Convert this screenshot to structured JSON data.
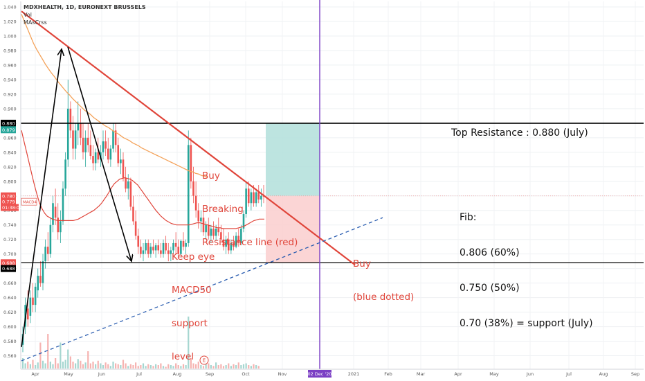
{
  "chart_data": {
    "type": "candlestick",
    "title": "MDXHEALTH, 1D, EURONEXT BRUSSELS",
    "indicators": [
      "Vol",
      "MAsCrss"
    ],
    "y_ticks": [
      "1.040",
      "1.020",
      "1.000",
      "0.980",
      "0.960",
      "0.940",
      "0.920",
      "0.900",
      "0.880",
      "0.860",
      "0.840",
      "0.820",
      "0.800",
      "0.780",
      "0.760",
      "0.740",
      "0.720",
      "0.700",
      "0.680",
      "0.660",
      "0.640",
      "0.620",
      "0.600",
      "0.580",
      "0.560"
    ],
    "x_ticks": [
      "Apr",
      "May",
      "Jun",
      "Jul",
      "Aug",
      "Sep",
      "Oct",
      "Nov",
      "02 Dec '20",
      "2021",
      "Feb",
      "Mar",
      "Apr",
      "May",
      "Jun",
      "Jul",
      "Aug",
      "Sep"
    ],
    "price_labels": [
      {
        "text": "0.880",
        "color": "#000000",
        "y": 0.88
      },
      {
        "text": "0.879",
        "color": "#26a69a",
        "y": 0.871
      },
      {
        "text": "0.780",
        "color": "#ef5350",
        "y": 0.78
      },
      {
        "text": "0.779",
        "color": "#ef5350",
        "y": 0.772
      },
      {
        "text": "01:38:02",
        "color": "#ef5350",
        "y": 0.764
      },
      {
        "text": "0.688",
        "color": "#ef5350",
        "y": 0.688
      },
      {
        "text": "0.688",
        "color": "#000000",
        "y": 0.68
      }
    ],
    "ma_tag": "MACD4",
    "candles": [
      [
        0.575,
        0.6,
        0.565,
        0.59
      ],
      [
        0.6,
        0.64,
        0.59,
        0.63
      ],
      [
        0.625,
        0.65,
        0.6,
        0.61
      ],
      [
        0.615,
        0.65,
        0.605,
        0.64
      ],
      [
        0.64,
        0.66,
        0.62,
        0.63
      ],
      [
        0.63,
        0.66,
        0.62,
        0.655
      ],
      [
        0.65,
        0.68,
        0.64,
        0.67
      ],
      [
        0.67,
        0.69,
        0.655,
        0.66
      ],
      [
        0.66,
        0.7,
        0.65,
        0.69
      ],
      [
        0.69,
        0.72,
        0.68,
        0.71
      ],
      [
        0.71,
        0.73,
        0.69,
        0.7
      ],
      [
        0.7,
        0.75,
        0.695,
        0.74
      ],
      [
        0.74,
        0.78,
        0.73,
        0.77
      ],
      [
        0.765,
        0.79,
        0.74,
        0.75
      ],
      [
        0.75,
        0.77,
        0.72,
        0.73
      ],
      [
        0.73,
        0.76,
        0.715,
        0.745
      ],
      [
        0.745,
        0.8,
        0.74,
        0.79
      ],
      [
        0.79,
        0.84,
        0.78,
        0.83
      ],
      [
        0.83,
        0.94,
        0.82,
        0.9
      ],
      [
        0.9,
        0.91,
        0.86,
        0.87
      ],
      [
        0.87,
        0.89,
        0.83,
        0.845
      ],
      [
        0.845,
        0.88,
        0.83,
        0.87
      ],
      [
        0.87,
        0.91,
        0.85,
        0.88
      ],
      [
        0.88,
        0.9,
        0.85,
        0.86
      ],
      [
        0.86,
        0.88,
        0.83,
        0.84
      ],
      [
        0.84,
        0.87,
        0.82,
        0.86
      ],
      [
        0.86,
        0.88,
        0.84,
        0.85
      ],
      [
        0.85,
        0.87,
        0.83,
        0.835
      ],
      [
        0.835,
        0.85,
        0.815,
        0.825
      ],
      [
        0.825,
        0.845,
        0.815,
        0.84
      ],
      [
        0.84,
        0.86,
        0.825,
        0.83
      ],
      [
        0.83,
        0.85,
        0.82,
        0.84
      ],
      [
        0.84,
        0.87,
        0.83,
        0.855
      ],
      [
        0.855,
        0.87,
        0.835,
        0.845
      ],
      [
        0.845,
        0.86,
        0.825,
        0.83
      ],
      [
        0.83,
        0.85,
        0.82,
        0.845
      ],
      [
        0.845,
        0.88,
        0.84,
        0.87
      ],
      [
        0.87,
        0.88,
        0.84,
        0.85
      ],
      [
        0.85,
        0.86,
        0.82,
        0.825
      ],
      [
        0.825,
        0.845,
        0.81,
        0.83
      ],
      [
        0.83,
        0.84,
        0.8,
        0.805
      ],
      [
        0.805,
        0.82,
        0.785,
        0.79
      ],
      [
        0.79,
        0.81,
        0.775,
        0.8
      ],
      [
        0.8,
        0.805,
        0.76,
        0.765
      ],
      [
        0.765,
        0.78,
        0.74,
        0.745
      ],
      [
        0.745,
        0.76,
        0.72,
        0.725
      ],
      [
        0.725,
        0.735,
        0.7,
        0.71
      ],
      [
        0.71,
        0.72,
        0.695,
        0.7
      ],
      [
        0.7,
        0.715,
        0.69,
        0.705
      ],
      [
        0.705,
        0.72,
        0.7,
        0.715
      ],
      [
        0.715,
        0.72,
        0.695,
        0.7
      ],
      [
        0.7,
        0.715,
        0.695,
        0.71
      ],
      [
        0.71,
        0.72,
        0.7,
        0.705
      ],
      [
        0.705,
        0.715,
        0.695,
        0.712
      ],
      [
        0.712,
        0.72,
        0.7,
        0.705
      ],
      [
        0.705,
        0.715,
        0.695,
        0.7
      ],
      [
        0.7,
        0.72,
        0.695,
        0.715
      ],
      [
        0.715,
        0.725,
        0.7,
        0.705
      ],
      [
        0.705,
        0.715,
        0.69,
        0.7
      ],
      [
        0.7,
        0.71,
        0.69,
        0.705
      ],
      [
        0.705,
        0.72,
        0.7,
        0.715
      ],
      [
        0.715,
        0.73,
        0.7,
        0.71
      ],
      [
        0.71,
        0.72,
        0.695,
        0.7
      ],
      [
        0.7,
        0.72,
        0.698,
        0.718
      ],
      [
        0.718,
        0.73,
        0.705,
        0.71
      ],
      [
        0.71,
        0.72,
        0.7,
        0.715
      ],
      [
        0.715,
        0.87,
        0.71,
        0.85
      ],
      [
        0.85,
        0.86,
        0.79,
        0.8
      ],
      [
        0.8,
        0.82,
        0.77,
        0.78
      ],
      [
        0.78,
        0.8,
        0.75,
        0.76
      ],
      [
        0.76,
        0.77,
        0.735,
        0.745
      ],
      [
        0.745,
        0.76,
        0.73,
        0.75
      ],
      [
        0.75,
        0.76,
        0.725,
        0.73
      ],
      [
        0.73,
        0.745,
        0.72,
        0.74
      ],
      [
        0.74,
        0.75,
        0.72,
        0.725
      ],
      [
        0.725,
        0.74,
        0.715,
        0.735
      ],
      [
        0.735,
        0.745,
        0.72,
        0.725
      ],
      [
        0.725,
        0.74,
        0.718,
        0.735
      ],
      [
        0.735,
        0.75,
        0.725,
        0.73
      ],
      [
        0.73,
        0.74,
        0.715,
        0.72
      ],
      [
        0.72,
        0.735,
        0.705,
        0.71
      ],
      [
        0.71,
        0.725,
        0.7,
        0.72
      ],
      [
        0.72,
        0.73,
        0.7,
        0.705
      ],
      [
        0.705,
        0.72,
        0.7,
        0.715
      ],
      [
        0.715,
        0.725,
        0.705,
        0.71
      ],
      [
        0.71,
        0.73,
        0.708,
        0.725
      ],
      [
        0.725,
        0.735,
        0.71,
        0.715
      ],
      [
        0.715,
        0.74,
        0.712,
        0.735
      ],
      [
        0.735,
        0.76,
        0.73,
        0.755
      ],
      [
        0.755,
        0.8,
        0.75,
        0.79
      ],
      [
        0.79,
        0.8,
        0.765,
        0.77
      ],
      [
        0.77,
        0.79,
        0.76,
        0.785
      ],
      [
        0.785,
        0.795,
        0.765,
        0.77
      ],
      [
        0.77,
        0.79,
        0.765,
        0.785
      ],
      [
        0.785,
        0.795,
        0.77,
        0.775
      ],
      [
        0.775,
        0.79,
        0.765,
        0.78
      ],
      [
        0.78,
        0.795,
        0.77,
        0.779
      ]
    ],
    "volumes": [
      12,
      6,
      8,
      5,
      10,
      4,
      7,
      30,
      9,
      6,
      40,
      8,
      5,
      12,
      6,
      30,
      8,
      10,
      22,
      14,
      8,
      6,
      11,
      9,
      5,
      7,
      20,
      6,
      8,
      5,
      9,
      6,
      4,
      7,
      5,
      3,
      8,
      6,
      5,
      4,
      10,
      6,
      3,
      5,
      4,
      7,
      3,
      4,
      6,
      3,
      5,
      4,
      3,
      5,
      4,
      6,
      3,
      2,
      5,
      4,
      3,
      6,
      4,
      3,
      5,
      4,
      60,
      12,
      6,
      5,
      8,
      4,
      3,
      5,
      6,
      4,
      3,
      7,
      4,
      5,
      3,
      4,
      6,
      3,
      5,
      4,
      7,
      4,
      5,
      6,
      4,
      3,
      5,
      4,
      3
    ],
    "ma_red": [
      0.87,
      0.855,
      0.84,
      0.825,
      0.81,
      0.795,
      0.782,
      0.77,
      0.762,
      0.756,
      0.752,
      0.75,
      0.748,
      0.747,
      0.746,
      0.746,
      0.746,
      0.746,
      0.746,
      0.746,
      0.746,
      0.747,
      0.748,
      0.75,
      0.752,
      0.754,
      0.756,
      0.758,
      0.76,
      0.763,
      0.766,
      0.77,
      0.775,
      0.78,
      0.786,
      0.792,
      0.797,
      0.8,
      0.803,
      0.804,
      0.805,
      0.804,
      0.803,
      0.801,
      0.798,
      0.795,
      0.79,
      0.785,
      0.78,
      0.775,
      0.77,
      0.765,
      0.76,
      0.756,
      0.752,
      0.749,
      0.746,
      0.744,
      0.742,
      0.741,
      0.74,
      0.74,
      0.74,
      0.74,
      0.74,
      0.74,
      0.741,
      0.742,
      0.743,
      0.743,
      0.742,
      0.741,
      0.74,
      0.739,
      0.738,
      0.737,
      0.736,
      0.736,
      0.735,
      0.735,
      0.735,
      0.735,
      0.735,
      0.735,
      0.736,
      0.737,
      0.738,
      0.74,
      0.742,
      0.744,
      0.746,
      0.747,
      0.748,
      0.748,
      0.748
    ],
    "ma_orange": [
      1.03,
      1.02,
      1.01,
      1.0,
      0.99,
      0.982,
      0.975,
      0.968,
      0.961,
      0.955,
      0.949,
      0.944,
      0.938,
      0.933,
      0.928,
      0.923,
      0.919,
      0.914,
      0.91,
      0.906,
      0.902,
      0.898,
      0.895,
      0.892,
      0.888,
      0.885,
      0.882,
      0.879,
      0.876,
      0.874,
      0.871,
      0.868,
      0.866,
      0.863,
      0.86,
      0.858,
      0.856,
      0.853,
      0.851,
      0.849,
      0.846,
      0.844,
      0.842,
      0.84,
      0.838,
      0.836,
      0.834,
      0.832,
      0.83,
      0.828,
      0.826,
      0.824,
      0.822,
      0.82,
      0.818,
      0.816,
      0.814,
      0.813,
      0.811,
      0.81,
      0.808,
      0.807,
      0.806
    ],
    "levels": {
      "top_resistance": 0.88,
      "support": 0.688
    },
    "annotations": {
      "top_resistance": "Top Resistance : 0.880 (July)",
      "fib": [
        "Fib:",
        "0.806 (60%)",
        "0.750 (50%)",
        "0.70 (38%) = support (July)"
      ],
      "buy_breaking": [
        "Buy",
        "Breaking",
        "Resistance line (red)"
      ],
      "keep_eye": [
        "Keep eye",
        "MACD50",
        "support",
        "level"
      ],
      "buy_blue": [
        "Buy",
        "(blue dotted)"
      ],
      "event_marker": "E"
    },
    "ylim": [
      0.55,
      1.045
    ],
    "colors": {
      "up": "#26a69a",
      "down": "#ef5350",
      "ma_red": "#e0453a",
      "ma_orange": "#f4a259",
      "resistance": "#e0453a",
      "support_trend": "#2a5db0",
      "vline": "#7b3fc4",
      "long_green": "#b2dfdb",
      "long_red": "#fbd0d0"
    }
  }
}
